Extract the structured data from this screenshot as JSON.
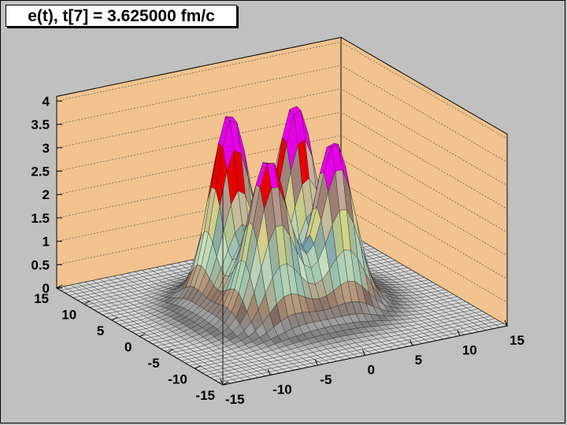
{
  "title": "e(t), t[7] = 3.625000 fm/c",
  "chart_data": {
    "type": "surface",
    "title": "e(t), t[7] = 3.625000 fm/c",
    "xlabel": "",
    "ylabel": "",
    "zlabel": "",
    "xlim": [
      -15,
      15
    ],
    "ylim": [
      -15,
      15
    ],
    "zlim": [
      0,
      4.1
    ],
    "x_ticks": [
      "-15",
      "-10",
      "-5",
      "0",
      "5",
      "10",
      "15"
    ],
    "y_ticks": [
      "-15",
      "-10",
      "-5",
      "0",
      "5",
      "10",
      "15"
    ],
    "z_ticks": [
      "0",
      "0.5",
      "1",
      "1.5",
      "2",
      "2.5",
      "3",
      "3.5",
      "4"
    ],
    "grid": true,
    "peaks": [
      {
        "x": -3.5,
        "y": 3.5,
        "z": 3.3
      },
      {
        "x": 3.5,
        "y": 3.5,
        "z": 3.2
      },
      {
        "x": -3.5,
        "y": -3.5,
        "z": 2.8
      },
      {
        "x": 3.5,
        "y": -3.5,
        "z": 2.9
      }
    ],
    "colors": {
      "frame_fill": "#f2c38e",
      "floor": "#dcdcdc",
      "peak_top": "#e700e7",
      "peak_red": "#e80000"
    }
  }
}
